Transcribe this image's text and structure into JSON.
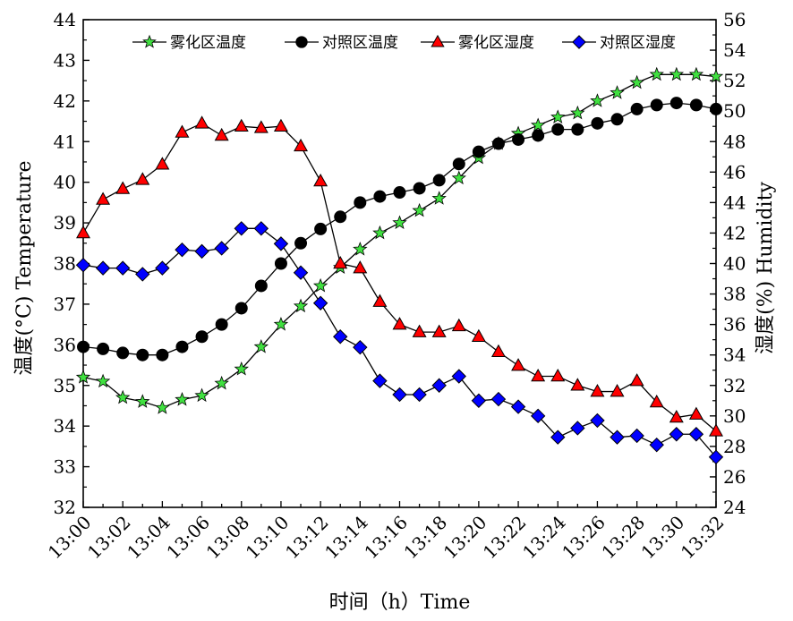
{
  "chart_data": {
    "type": "line",
    "xlabel": "时间（h）Time",
    "ylabel_left": "温度(°C) Temperature",
    "ylabel_right": "湿度(%) Humidity",
    "x": [
      "13:00",
      "13:01",
      "13:02",
      "13:03",
      "13:04",
      "13:05",
      "13:06",
      "13:07",
      "13:08",
      "13:09",
      "13:10",
      "13:11",
      "13:12",
      "13:13",
      "13:14",
      "13:15",
      "13:16",
      "13:17",
      "13:18",
      "13:19",
      "13:20",
      "13:21",
      "13:22",
      "13:23",
      "13:24",
      "13:25",
      "13:26",
      "13:27",
      "13:28",
      "13:29",
      "13:30",
      "13:31",
      "13:32"
    ],
    "x_tick_labels": [
      "13:00",
      "13:02",
      "13:04",
      "13:06",
      "13:08",
      "13:10",
      "13:12",
      "13:14",
      "13:16",
      "13:18",
      "13:20",
      "13:22",
      "13:24",
      "13:26",
      "13:28",
      "13:30",
      "13:32"
    ],
    "ylim_left": [
      32,
      44
    ],
    "yticks_left": [
      32,
      33,
      34,
      35,
      36,
      37,
      38,
      39,
      40,
      41,
      42,
      43,
      44
    ],
    "ylim_right": [
      24,
      56
    ],
    "yticks_right": [
      24,
      26,
      28,
      30,
      32,
      34,
      36,
      38,
      40,
      42,
      44,
      46,
      48,
      50,
      52,
      54,
      56
    ],
    "legend_position": "top",
    "series": [
      {
        "name": "雾化区温度",
        "axis": "left",
        "marker": "star",
        "color": "#40e040",
        "values": [
          35.2,
          35.1,
          34.7,
          34.6,
          34.45,
          34.65,
          34.75,
          35.05,
          35.4,
          35.95,
          36.5,
          36.95,
          37.45,
          37.9,
          38.35,
          38.75,
          39.0,
          39.3,
          39.6,
          40.1,
          40.6,
          40.95,
          41.2,
          41.4,
          41.6,
          41.7,
          42.0,
          42.2,
          42.45,
          42.65,
          42.65,
          42.65,
          42.6
        ]
      },
      {
        "name": "对照区温度",
        "axis": "left",
        "marker": "circle",
        "color": "#000000",
        "values": [
          35.95,
          35.9,
          35.8,
          35.75,
          35.75,
          35.95,
          36.2,
          36.5,
          36.9,
          37.45,
          38.0,
          38.5,
          38.85,
          39.15,
          39.5,
          39.65,
          39.75,
          39.85,
          40.05,
          40.45,
          40.75,
          40.95,
          41.05,
          41.15,
          41.3,
          41.3,
          41.45,
          41.55,
          41.8,
          41.9,
          41.95,
          41.9,
          41.8
        ]
      },
      {
        "name": "雾化区湿度",
        "axis": "right",
        "marker": "triangle",
        "color": "#ff0000",
        "values": [
          42.0,
          44.2,
          44.9,
          45.5,
          46.5,
          48.6,
          49.2,
          48.4,
          49.0,
          48.9,
          49.0,
          47.7,
          45.4,
          40.0,
          39.7,
          37.5,
          36.0,
          35.5,
          35.5,
          35.9,
          35.2,
          34.2,
          33.3,
          32.6,
          32.6,
          32.0,
          31.6,
          31.6,
          32.3,
          30.9,
          29.9,
          30.1,
          29.0
        ]
      },
      {
        "name": "对照区湿度",
        "axis": "right",
        "marker": "diamond",
        "color": "#0000ff",
        "values": [
          39.9,
          39.7,
          39.7,
          39.3,
          39.7,
          40.9,
          40.8,
          41.0,
          42.3,
          42.3,
          41.3,
          39.4,
          37.4,
          35.2,
          34.5,
          32.3,
          31.4,
          31.4,
          32.0,
          32.6,
          31.0,
          31.1,
          30.6,
          30.0,
          28.6,
          29.2,
          29.7,
          28.6,
          28.7,
          28.1,
          28.8,
          28.8,
          27.3
        ]
      }
    ]
  }
}
